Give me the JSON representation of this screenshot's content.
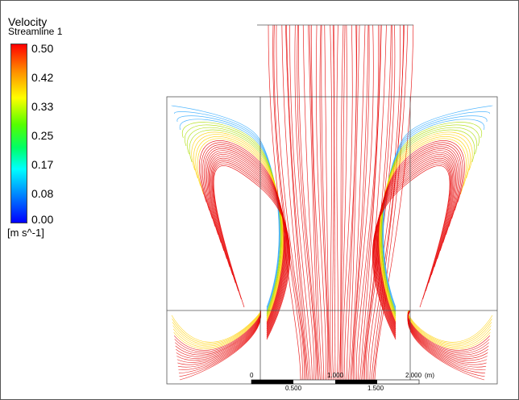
{
  "legend": {
    "title": "Velocity",
    "subtitle": "Streamline 1",
    "ticks": [
      "0.50",
      "0.42",
      "0.33",
      "0.25",
      "0.17",
      "0.08",
      "0.00"
    ],
    "units": "[m s^-1]"
  },
  "scale_bar": {
    "top_labels": [
      "0",
      "1.000",
      "2.000",
      "(m)"
    ],
    "bottom_labels": [
      "0.500",
      "1.500"
    ]
  },
  "colors": {
    "max": "#ff0000",
    "mid": "#ffff00",
    "low": "#00ffff",
    "min": "#0000ff"
  }
}
